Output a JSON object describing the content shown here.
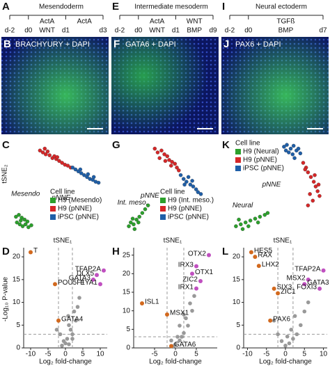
{
  "panels": [
    {
      "timeline": {
        "letter": "A",
        "title": "Mesendoderm",
        "days": [
          "d-2",
          "d0",
          "d1",
          "d3"
        ],
        "stages": [
          [
            "ActA",
            "WNT"
          ],
          [
            "ActA"
          ]
        ]
      },
      "image": {
        "letter": "B",
        "label": "BRACHYURY + DAPI"
      },
      "tsne": {
        "letter": "C",
        "y_label": "tSNE₂",
        "x_label": "tSNE₁",
        "legend_title": "Cell line",
        "legend": "lower right",
        "xlim": [
          0,
          100
        ],
        "ylim": [
          0,
          100
        ],
        "series": [
          {
            "name": "H9 (Mesendo)",
            "color": "#2ca02c",
            "points": [
              [
                5,
                18
              ],
              [
                8,
                20
              ],
              [
                11,
                17
              ],
              [
                14,
                15
              ],
              [
                17,
                13
              ],
              [
                6,
                12
              ],
              [
                9,
                10
              ],
              [
                12,
                8
              ],
              [
                15,
                10
              ],
              [
                18,
                7
              ],
              [
                21,
                9
              ],
              [
                10,
                14
              ]
            ]
          },
          {
            "name": "H9 (pNNE)",
            "color": "#d62728",
            "points": [
              [
                30,
                88
              ],
              [
                33,
                86
              ],
              [
                36,
                84
              ],
              [
                40,
                83
              ],
              [
                38,
                87
              ],
              [
                43,
                80
              ],
              [
                47,
                79
              ],
              [
                50,
                77
              ],
              [
                45,
                82
              ],
              [
                53,
                75
              ],
              [
                56,
                73
              ],
              [
                59,
                72
              ],
              [
                62,
                70
              ],
              [
                35,
                90
              ],
              [
                48,
                81
              ]
            ]
          },
          {
            "name": "iPSC (pNNE)",
            "color": "#1f5fa8",
            "points": [
              [
                64,
                70
              ],
              [
                67,
                68
              ],
              [
                70,
                66
              ],
              [
                73,
                64
              ],
              [
                76,
                62
              ],
              [
                79,
                60
              ],
              [
                82,
                58
              ],
              [
                85,
                57
              ],
              [
                88,
                55
              ],
              [
                91,
                54
              ],
              [
                72,
                68
              ],
              [
                80,
                63
              ],
              [
                86,
                60
              ]
            ]
          }
        ],
        "labels": [
          "pNNE",
          "Mesendo"
        ]
      },
      "volcano": {
        "letter": "D",
        "y_label": "-Log₁₀ P-value",
        "x_label": "Log₂ fold-change",
        "xlim": [
          -12,
          12
        ],
        "ylim": [
          0,
          22
        ],
        "xticks": [
          -10,
          -5,
          0,
          5,
          10
        ],
        "yticks": [
          0,
          5,
          10,
          15,
          20
        ],
        "thresholds": {
          "x": [
            -2,
            2
          ],
          "y": 3
        },
        "points": [
          [
            -1,
            0.5
          ],
          [
            0,
            1
          ],
          [
            1,
            0.8
          ],
          [
            0.5,
            2
          ],
          [
            -0.5,
            1.5
          ],
          [
            2,
            3
          ],
          [
            1.5,
            4
          ],
          [
            3,
            6
          ],
          [
            2.5,
            8
          ],
          [
            4,
            11
          ],
          [
            1,
            5
          ],
          [
            -1.5,
            3
          ],
          [
            0.8,
            7
          ],
          [
            3.5,
            9
          ],
          [
            2,
            2
          ],
          [
            -2.5,
            4
          ]
        ],
        "genes": [
          {
            "name": "T",
            "x": -10,
            "y": 21,
            "color": "#d2691e"
          },
          {
            "name": "POU5F1",
            "x": -3,
            "y": 14,
            "color": "#d2691e"
          },
          {
            "name": "GATA4",
            "x": -2,
            "y": 6,
            "color": "#d2691e"
          },
          {
            "name": "GATA3",
            "x": 8,
            "y": 15,
            "color": "#c050c0"
          },
          {
            "name": "DLX5",
            "x": 9,
            "y": 16,
            "color": "#c050c0"
          },
          {
            "name": "TFAP2A",
            "x": 11,
            "y": 17,
            "color": "#c050c0"
          },
          {
            "name": "EYA1",
            "x": 10,
            "y": 14,
            "color": "#c050c0"
          }
        ]
      }
    },
    {
      "timeline": {
        "letter": "E",
        "title": "Intermediate mesoderm",
        "days": [
          "d-2",
          "d0",
          "d1",
          "d9"
        ],
        "stages": [
          [
            "ActA",
            "WNT"
          ],
          [
            "WNT",
            "BMP"
          ]
        ]
      },
      "image": {
        "letter": "F",
        "label": "GATA6 + DAPI"
      },
      "tsne": {
        "letter": "G",
        "x_label": "tSNE₁",
        "legend_title": "Cell line",
        "legend": "lower right",
        "xlim": [
          0,
          100
        ],
        "ylim": [
          0,
          100
        ],
        "series": [
          {
            "name": "H9 (Int. meso.)",
            "color": "#2ca02c",
            "points": [
              [
                8,
                8
              ],
              [
                10,
                12
              ],
              [
                13,
                10
              ],
              [
                16,
                15
              ],
              [
                19,
                18
              ],
              [
                12,
                16
              ],
              [
                22,
                22
              ],
              [
                25,
                26
              ],
              [
                18,
                12
              ],
              [
                14,
                5
              ],
              [
                28,
                30
              ]
            ]
          },
          {
            "name": "H9 (pNNE)",
            "color": "#d62728",
            "points": [
              [
                35,
                90
              ],
              [
                38,
                86
              ],
              [
                42,
                88
              ],
              [
                45,
                84
              ],
              [
                48,
                82
              ],
              [
                40,
                80
              ],
              [
                50,
                78
              ],
              [
                53,
                76
              ],
              [
                56,
                74
              ],
              [
                46,
                77
              ],
              [
                58,
                70
              ],
              [
                60,
                67
              ],
              [
                52,
                72
              ]
            ]
          },
          {
            "name": "iPSC (pNNE)",
            "color": "#1f5fa8",
            "points": [
              [
                62,
                62
              ],
              [
                65,
                58
              ],
              [
                68,
                55
              ],
              [
                72,
                52
              ],
              [
                75,
                50
              ],
              [
                78,
                47
              ],
              [
                70,
                60
              ],
              [
                74,
                56
              ],
              [
                80,
                44
              ],
              [
                83,
                42
              ],
              [
                66,
                52
              ]
            ]
          }
        ],
        "labels": [
          "pNNE",
          "Int. meso."
        ]
      },
      "volcano": {
        "letter": "H",
        "xlim": [
          -10,
          10
        ],
        "ylim": [
          0,
          27
        ],
        "xticks": [
          -5,
          0,
          5
        ],
        "yticks": [
          0,
          5,
          10,
          15,
          20,
          25
        ],
        "thresholds": {
          "x": [
            -2,
            2
          ],
          "y": 3
        },
        "x_label": "Log₂ fold-change",
        "points": [
          [
            0,
            1
          ],
          [
            1,
            2
          ],
          [
            -0.5,
            0.5
          ],
          [
            2,
            4
          ],
          [
            1.5,
            3
          ],
          [
            3,
            6
          ],
          [
            2.5,
            8
          ],
          [
            4,
            10
          ],
          [
            3.5,
            12
          ],
          [
            1,
            6
          ],
          [
            -1,
            2
          ],
          [
            0.5,
            3
          ],
          [
            2,
            9
          ],
          [
            4.5,
            14
          ]
        ],
        "genes": [
          {
            "name": "OTX2",
            "x": 8,
            "y": 25,
            "color": "#c050c0"
          },
          {
            "name": "IRX3",
            "x": 5,
            "y": 22,
            "color": "#c050c0"
          },
          {
            "name": "OTX1",
            "x": 4,
            "y": 20,
            "color": "#c050c0"
          },
          {
            "name": "ZIC2",
            "x": 6,
            "y": 18,
            "color": "#c050c0"
          },
          {
            "name": "IRX1",
            "x": 5,
            "y": 16,
            "color": "#c050c0"
          },
          {
            "name": "ISL1",
            "x": -8,
            "y": 12,
            "color": "#d2691e"
          },
          {
            "name": "MSX1",
            "x": -2,
            "y": 9,
            "color": "#d2691e"
          },
          {
            "name": "GATA6",
            "x": -1,
            "y": 0.5,
            "color": "#d2691e"
          }
        ]
      }
    },
    {
      "timeline": {
        "letter": "I",
        "title": "Neural ectoderm",
        "days": [
          "d-2",
          "d0",
          "d7"
        ],
        "stages": [
          [
            "TGFß",
            "BMP"
          ]
        ]
      },
      "image": {
        "letter": "J",
        "label": "PAX6 + DAPI"
      },
      "tsne": {
        "letter": "K",
        "x_label": "tSNE₁",
        "legend_title": "Cell line",
        "legend": "upper left",
        "xlim": [
          0,
          100
        ],
        "ylim": [
          0,
          100
        ],
        "series": [
          {
            "name": "H9 (Neural)",
            "color": "#2ca02c",
            "points": [
              [
                5,
                8
              ],
              [
                10,
                10
              ],
              [
                15,
                12
              ],
              [
                20,
                14
              ],
              [
                25,
                16
              ],
              [
                30,
                18
              ],
              [
                35,
                20
              ],
              [
                8,
                15
              ],
              [
                18,
                8
              ],
              [
                28,
                12
              ],
              [
                38,
                22
              ],
              [
                12,
                5
              ]
            ]
          },
          {
            "name": "H9 (pNNE)",
            "color": "#d62728",
            "points": [
              [
                75,
                75
              ],
              [
                78,
                70
              ],
              [
                80,
                65
              ],
              [
                83,
                60
              ],
              [
                86,
                55
              ],
              [
                88,
                50
              ],
              [
                90,
                45
              ],
              [
                92,
                40
              ],
              [
                85,
                35
              ],
              [
                80,
                30
              ],
              [
                87,
                62
              ],
              [
                91,
                52
              ],
              [
                77,
                68
              ],
              [
                82,
                42
              ]
            ]
          },
          {
            "name": "iPSC (pNNE)",
            "color": "#1f5fa8",
            "points": [
              [
                55,
                92
              ],
              [
                58,
                94
              ],
              [
                62,
                90
              ],
              [
                65,
                93
              ],
              [
                68,
                88
              ],
              [
                60,
                86
              ],
              [
                64,
                84
              ],
              [
                70,
                90
              ],
              [
                72,
                85
              ],
              [
                57,
                88
              ],
              [
                66,
                80
              ]
            ]
          }
        ],
        "labels": [
          "pNNE",
          "Neural"
        ]
      },
      "volcano": {
        "letter": "L",
        "xlim": [
          -11,
          11
        ],
        "ylim": [
          0,
          22
        ],
        "xticks": [
          -10,
          -5,
          0,
          5,
          10
        ],
        "yticks": [
          0,
          5,
          10,
          15,
          20
        ],
        "thresholds": {
          "x": [
            -2,
            2
          ],
          "y": 3
        },
        "x_label": "Log₂ fold-change",
        "points": [
          [
            0,
            0.5
          ],
          [
            1,
            1
          ],
          [
            -1,
            1.5
          ],
          [
            2,
            2
          ],
          [
            3,
            3
          ],
          [
            4,
            5
          ],
          [
            -2,
            3
          ],
          [
            1.5,
            4
          ],
          [
            5,
            8
          ],
          [
            6,
            10
          ],
          [
            -3,
            6
          ],
          [
            2.5,
            7
          ],
          [
            0.5,
            2.5
          ]
        ],
        "genes": [
          {
            "name": "HES5",
            "x": -9,
            "y": 21,
            "color": "#d2691e"
          },
          {
            "name": "RAX",
            "x": -8,
            "y": 20,
            "color": "#d2691e"
          },
          {
            "name": "LHX2",
            "x": -7,
            "y": 18,
            "color": "#d2691e"
          },
          {
            "name": "SIX3",
            "x": -3,
            "y": 13,
            "color": "#d2691e"
          },
          {
            "name": "ZIC1",
            "x": -2,
            "y": 12,
            "color": "#d2691e"
          },
          {
            "name": "PAX6",
            "x": -4,
            "y": 6,
            "color": "#d2691e"
          },
          {
            "name": "MSX2",
            "x": 6,
            "y": 15,
            "color": "#c050c0"
          },
          {
            "name": "GATA3",
            "x": 5,
            "y": 14,
            "color": "#c050c0"
          },
          {
            "name": "TFAP2A",
            "x": 10,
            "y": 17,
            "color": "#c050c0"
          },
          {
            "name": "FOXI3",
            "x": 9,
            "y": 13,
            "color": "#c050c0"
          }
        ]
      }
    }
  ]
}
